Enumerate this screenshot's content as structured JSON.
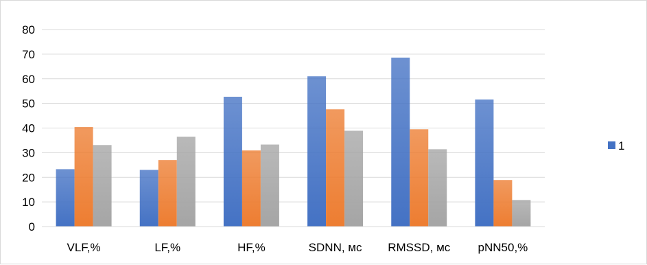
{
  "chart_data": {
    "type": "bar",
    "categories": [
      "VLF,%",
      "LF,%",
      "HF,%",
      "SDNN, мс",
      "RMSSD, мс",
      "pNN50,%"
    ],
    "series": [
      {
        "name": "1",
        "color": "#4472c4",
        "values": [
          23.3,
          23.0,
          52.7,
          61.0,
          68.6,
          51.6
        ]
      },
      {
        "color": "#ed7d31",
        "values": [
          40.4,
          27.0,
          30.9,
          47.6,
          39.5,
          18.9
        ]
      },
      {
        "color": "#a5a5a5",
        "values": [
          33.1,
          36.5,
          33.3,
          38.9,
          31.4,
          10.8
        ]
      }
    ],
    "y_ticks": [
      "0",
      "10",
      "20",
      "30",
      "40",
      "50",
      "60",
      "70",
      "80"
    ],
    "ylim": [
      0,
      80
    ],
    "grid": true,
    "legend_position": "right",
    "legend": [
      {
        "label": "1",
        "color": "#4472c4"
      }
    ]
  }
}
